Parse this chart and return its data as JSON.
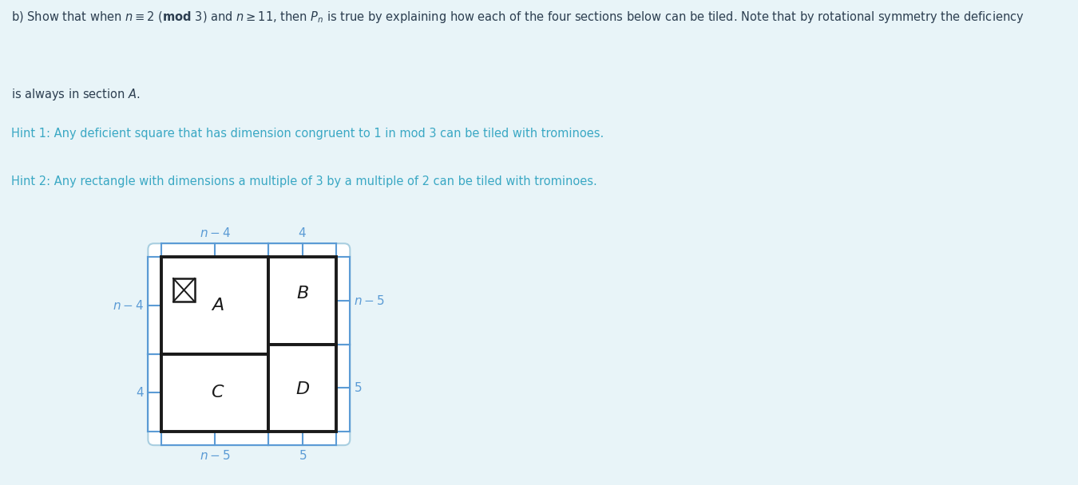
{
  "fig_bg_color": "#e8f4f8",
  "white_color": "#ffffff",
  "text_color_dark": "#2c3e50",
  "hint_color": "#3aa8c4",
  "blue_brace": "#5b9bd5",
  "box_color": "#1a1a1a",
  "title_line1": "b) Show that when $n \\equiv 2\\ (\\mathbf{mod}\\ 3)$ and $n \\geq 11$, then $P_n$ is true by explaining how each of the four sections below can be tiled. Note that by rotational symmetry the deficiency",
  "title_line2": "is always in section $A$.",
  "hint1": "Hint 1: Any deficient square that has dimension congruent to 1 in mod 3 can be tiled with trominoes.",
  "hint2": "Hint 2: Any rectangle with dimensions a multiple of 3 by a multiple of 2 can be tiled with trominoes.",
  "label_A": "$A$",
  "label_B": "$B$",
  "label_C": "$C$",
  "label_D": "$D$",
  "dim_n4": "$n-4$",
  "dim_4": "$4$",
  "dim_n5": "$n-5$",
  "dim_5": "$5$"
}
